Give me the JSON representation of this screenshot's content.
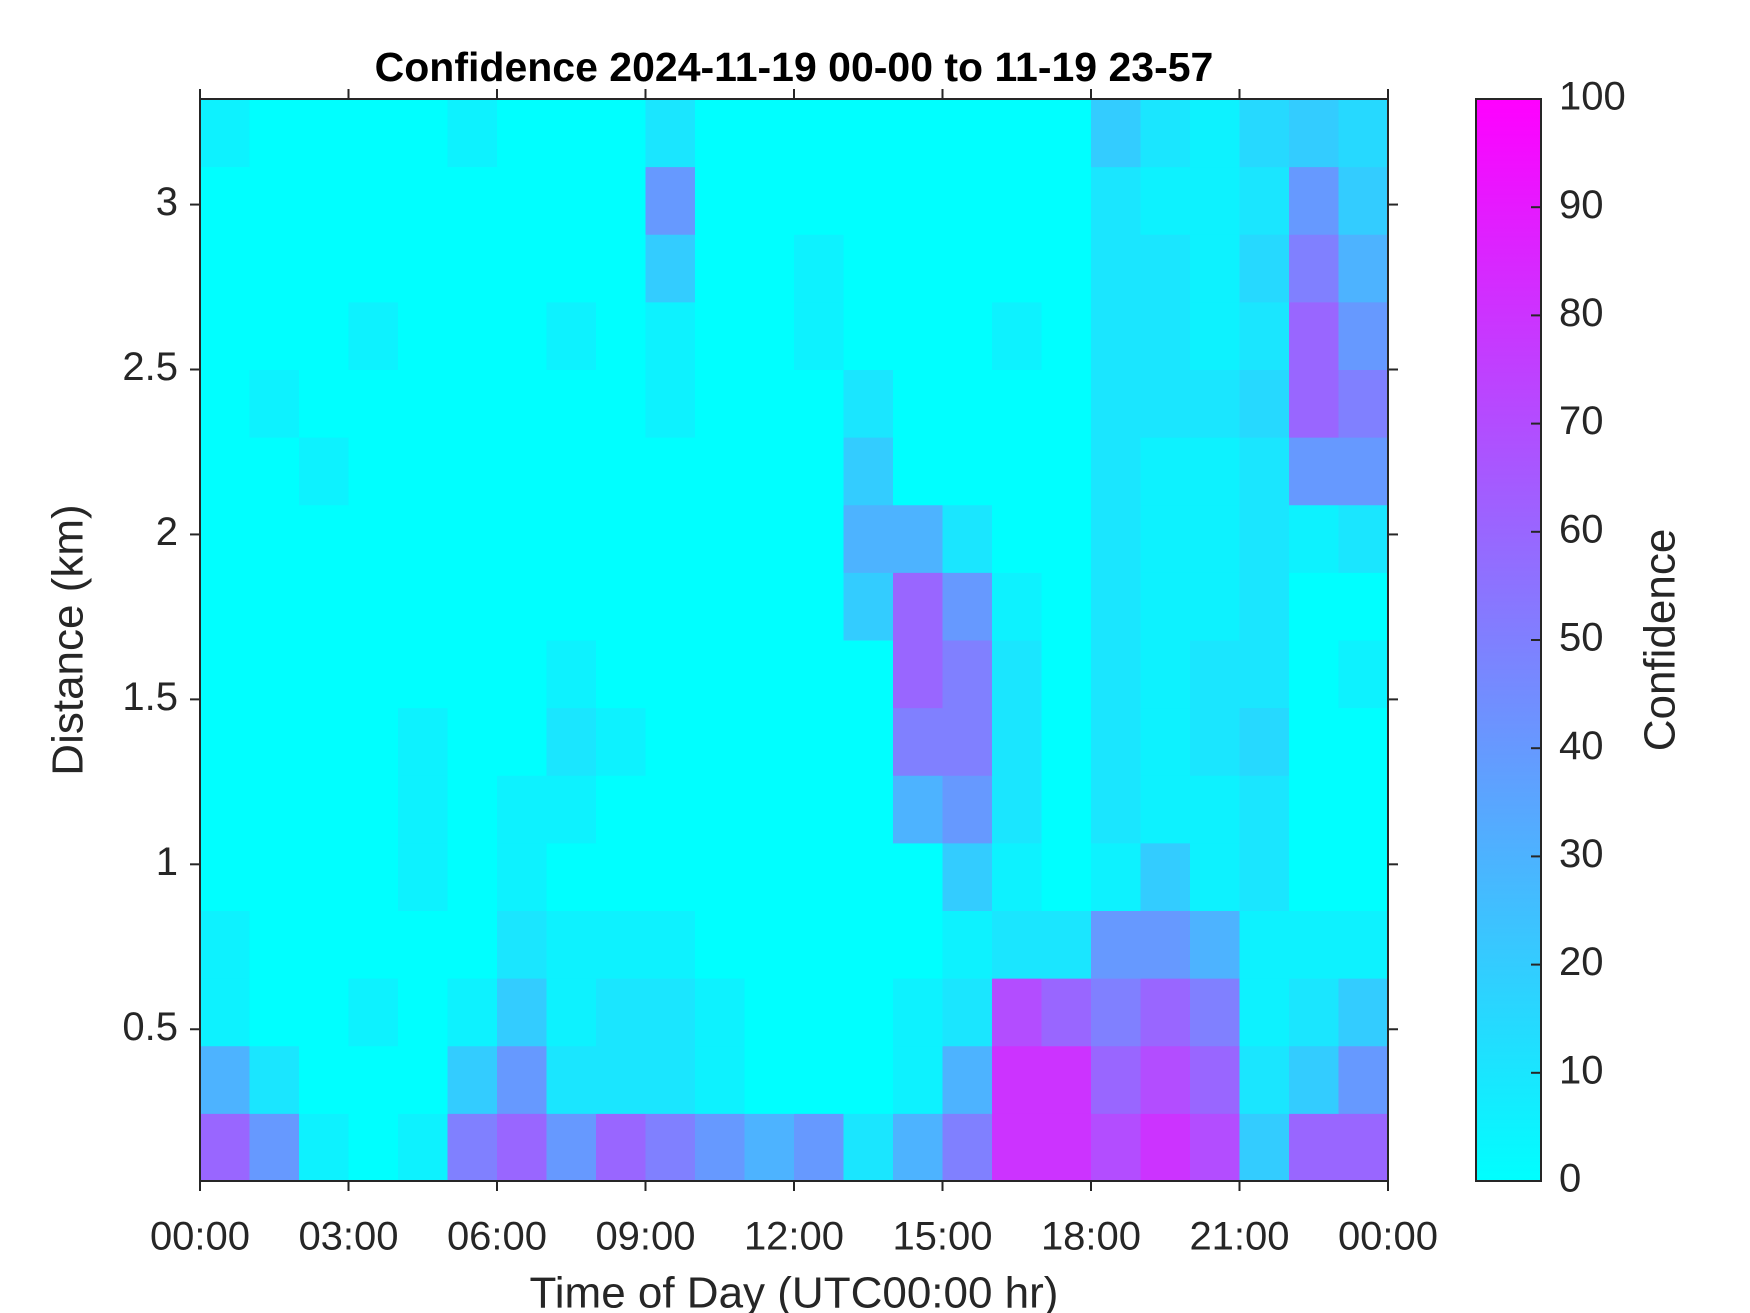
{
  "chart_data": {
    "type": "heatmap",
    "title": "Confidence 2024-11-19 00-00 to 11-19 23-57",
    "xlabel": "Time of Day (UTC00:00 hr)",
    "ylabel": "Distance (km)",
    "colorbar_label": "Confidence",
    "colormap": [
      "#00ffff",
      "#ff00ff"
    ],
    "clim": [
      0,
      100
    ],
    "cticks": [
      0,
      10,
      20,
      30,
      40,
      50,
      60,
      70,
      80,
      90,
      100
    ],
    "xlim": [
      0,
      24
    ],
    "xticks": [
      {
        "value": 0,
        "label": "00:00"
      },
      {
        "value": 3,
        "label": "03:00"
      },
      {
        "value": 6,
        "label": "06:00"
      },
      {
        "value": 9,
        "label": "09:00"
      },
      {
        "value": 12,
        "label": "12:00"
      },
      {
        "value": 15,
        "label": "15:00"
      },
      {
        "value": 18,
        "label": "18:00"
      },
      {
        "value": 21,
        "label": "21:00"
      },
      {
        "value": 24,
        "label": "00:00"
      }
    ],
    "ylim": [
      0.04,
      3.32
    ],
    "yticks": [
      0.5,
      1,
      1.5,
      2,
      2.5,
      3
    ],
    "x_bins": [
      0,
      1,
      2,
      3,
      4,
      5,
      6,
      7,
      8,
      9,
      10,
      11,
      12,
      13,
      14,
      15,
      16,
      17,
      18,
      19,
      20,
      21,
      22,
      23,
      24
    ],
    "y_bins": [
      0.04,
      0.245,
      0.45,
      0.655,
      0.86,
      1.065,
      1.27,
      1.475,
      1.68,
      1.885,
      2.09,
      2.295,
      2.5,
      2.705,
      2.91,
      3.115,
      3.32
    ],
    "z": [
      [
        60,
        40,
        5,
        0,
        5,
        50,
        60,
        40,
        60,
        50,
        40,
        30,
        40,
        10,
        30,
        50,
        80,
        80,
        70,
        80,
        70,
        20,
        60,
        60
      ],
      [
        30,
        10,
        0,
        0,
        0,
        20,
        40,
        10,
        10,
        10,
        5,
        0,
        0,
        0,
        5,
        30,
        80,
        80,
        60,
        70,
        60,
        10,
        20,
        40
      ],
      [
        5,
        0,
        0,
        5,
        0,
        5,
        20,
        5,
        10,
        10,
        5,
        0,
        0,
        0,
        5,
        10,
        70,
        60,
        50,
        60,
        50,
        5,
        10,
        20
      ],
      [
        5,
        0,
        0,
        0,
        0,
        0,
        10,
        5,
        5,
        5,
        0,
        0,
        0,
        0,
        0,
        5,
        10,
        10,
        40,
        40,
        30,
        5,
        5,
        5
      ],
      [
        0,
        0,
        0,
        0,
        5,
        0,
        5,
        0,
        0,
        0,
        0,
        0,
        0,
        0,
        0,
        20,
        5,
        0,
        5,
        20,
        5,
        10,
        0,
        0
      ],
      [
        0,
        0,
        0,
        0,
        5,
        0,
        5,
        5,
        0,
        0,
        0,
        0,
        0,
        0,
        30,
        40,
        10,
        0,
        10,
        5,
        5,
        10,
        0,
        0
      ],
      [
        0,
        0,
        0,
        0,
        5,
        0,
        0,
        10,
        5,
        0,
        0,
        0,
        0,
        0,
        50,
        50,
        10,
        0,
        10,
        5,
        10,
        15,
        0,
        0
      ],
      [
        0,
        0,
        0,
        0,
        0,
        0,
        0,
        5,
        0,
        0,
        0,
        0,
        0,
        0,
        60,
        50,
        10,
        0,
        10,
        5,
        10,
        10,
        0,
        5
      ],
      [
        0,
        0,
        0,
        0,
        0,
        0,
        0,
        0,
        0,
        0,
        0,
        0,
        0,
        20,
        60,
        40,
        5,
        0,
        10,
        5,
        5,
        10,
        0,
        0
      ],
      [
        0,
        0,
        0,
        0,
        0,
        0,
        0,
        0,
        0,
        0,
        0,
        0,
        0,
        30,
        30,
        10,
        0,
        0,
        10,
        5,
        5,
        10,
        5,
        10
      ],
      [
        0,
        0,
        5,
        0,
        0,
        0,
        0,
        0,
        0,
        0,
        0,
        0,
        0,
        20,
        0,
        0,
        0,
        0,
        10,
        5,
        5,
        10,
        40,
        40
      ],
      [
        0,
        5,
        0,
        0,
        0,
        0,
        0,
        0,
        0,
        5,
        0,
        0,
        0,
        10,
        0,
        0,
        0,
        0,
        10,
        10,
        10,
        15,
        60,
        50
      ],
      [
        0,
        0,
        0,
        5,
        0,
        0,
        0,
        5,
        0,
        5,
        0,
        0,
        5,
        0,
        0,
        0,
        5,
        0,
        10,
        10,
        5,
        10,
        60,
        40
      ],
      [
        0,
        0,
        0,
        0,
        0,
        0,
        0,
        0,
        0,
        20,
        0,
        0,
        5,
        0,
        0,
        0,
        0,
        0,
        10,
        10,
        5,
        15,
        50,
        30
      ],
      [
        0,
        0,
        0,
        0,
        0,
        0,
        0,
        0,
        0,
        40,
        0,
        0,
        0,
        0,
        0,
        0,
        0,
        0,
        10,
        5,
        5,
        10,
        40,
        20
      ],
      [
        5,
        0,
        0,
        0,
        0,
        5,
        0,
        0,
        0,
        10,
        0,
        0,
        0,
        0,
        0,
        0,
        0,
        0,
        20,
        10,
        5,
        15,
        20,
        15
      ]
    ]
  }
}
